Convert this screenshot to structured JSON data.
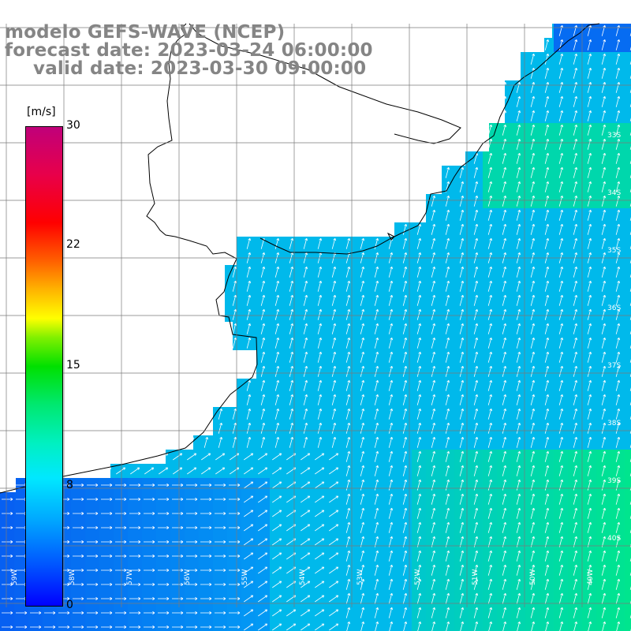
{
  "title": {
    "line1": "modelo GEFS-WAVE (NCEP)",
    "line2": "forecast date: 2023-03-24 06:00:00",
    "line3": "valid date: 2023-03-30 09:00:00"
  },
  "colorbar": {
    "unit": "[m/s]",
    "ticks": [
      "30",
      "22",
      "15",
      "8",
      "0"
    ],
    "tick_values": [
      30,
      22,
      15,
      8,
      0
    ]
  },
  "map": {
    "variable": "wind speed and direction",
    "lat_labels": [
      "33S",
      "34S",
      "35S",
      "36S",
      "37S",
      "38S",
      "39S",
      "40S"
    ],
    "lon_labels": [
      "59W",
      "58W",
      "57W",
      "56W",
      "55W",
      "54W",
      "53W",
      "52W",
      "51W",
      "50W",
      "49W"
    ],
    "colors": {
      "land": "#ffffff",
      "coastline": "#000000",
      "grid": "#7a7a7a",
      "low_speed": "#0a3cf0",
      "mid_speed": "#00b4f5",
      "high_speed": "#00e68c"
    }
  }
}
